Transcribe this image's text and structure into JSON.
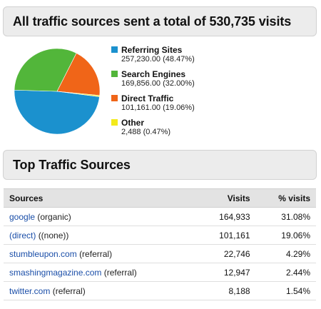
{
  "summary": {
    "title": "All traffic sources sent a total of 530,735 visits"
  },
  "chart_data": {
    "type": "pie",
    "slices": [
      {
        "label": "Referring Sites",
        "value": 257230.0,
        "display_value": "257,230.00 (48.47%)",
        "percent": 48.47,
        "color": "#1b91ce"
      },
      {
        "label": "Search Engines",
        "value": 169856.0,
        "display_value": "169,856.00 (32.00%)",
        "percent": 32.0,
        "color": "#52b63a"
      },
      {
        "label": "Direct Traffic",
        "value": 101161.0,
        "display_value": "101,161.00 (19.06%)",
        "percent": 19.06,
        "color": "#f06518"
      },
      {
        "label": "Other",
        "value": 2488,
        "display_value": "2,488 (0.47%)",
        "percent": 0.47,
        "color": "#f3ea1b"
      }
    ],
    "legend_position": "right"
  },
  "top_sources": {
    "title": "Top Traffic Sources",
    "columns": [
      "Sources",
      "Visits",
      "% visits"
    ],
    "rows": [
      {
        "source": "google",
        "type": "(organic)",
        "visits": "164,933",
        "percent": "31.08%"
      },
      {
        "source": "(direct)",
        "type": "((none))",
        "visits": "101,161",
        "percent": "19.06%"
      },
      {
        "source": "stumbleupon.com",
        "type": "(referral)",
        "visits": "22,746",
        "percent": "4.29%"
      },
      {
        "source": "smashingmagazine.com",
        "type": "(referral)",
        "visits": "12,947",
        "percent": "2.44%"
      },
      {
        "source": "twitter.com",
        "type": "(referral)",
        "visits": "8,188",
        "percent": "1.54%"
      }
    ]
  }
}
